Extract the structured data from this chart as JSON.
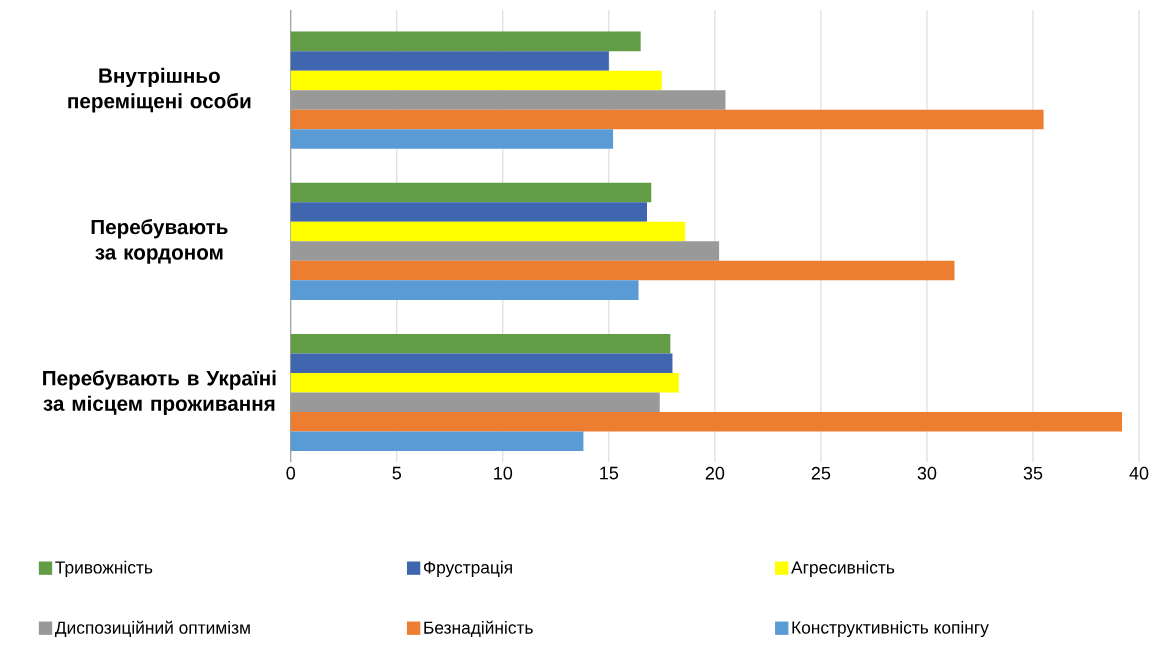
{
  "chart_data": {
    "type": "bar",
    "orientation": "horizontal",
    "categories": [
      "Внутрішньо переміщені особи",
      "Перебувають за кордоном",
      "Перебувають в Україні за місцем проживання"
    ],
    "series": [
      {
        "name": "Тривожність",
        "color": "#629c44",
        "values": [
          16.5,
          17.0,
          17.9
        ]
      },
      {
        "name": "Фрустрація",
        "color": "#3f66ae",
        "values": [
          15.0,
          16.8,
          18.0
        ]
      },
      {
        "name": "Агресивність",
        "color": "#ffff00",
        "values": [
          17.5,
          18.6,
          18.3
        ]
      },
      {
        "name": "Диспозиційний оптимізм",
        "color": "#999999",
        "values": [
          20.5,
          20.2,
          17.4
        ]
      },
      {
        "name": "Безнадійність",
        "color": "#ed7d31",
        "values": [
          35.5,
          31.3,
          39.2
        ]
      },
      {
        "name": "Конструктивність копінгу",
        "color": "#5b9bd5",
        "values": [
          15.2,
          16.4,
          13.8
        ]
      }
    ],
    "xlim": [
      0,
      40
    ],
    "xticks": [
      0,
      5,
      10,
      15,
      20,
      25,
      30,
      35,
      40
    ],
    "grid": "x",
    "legend": "bottom"
  }
}
